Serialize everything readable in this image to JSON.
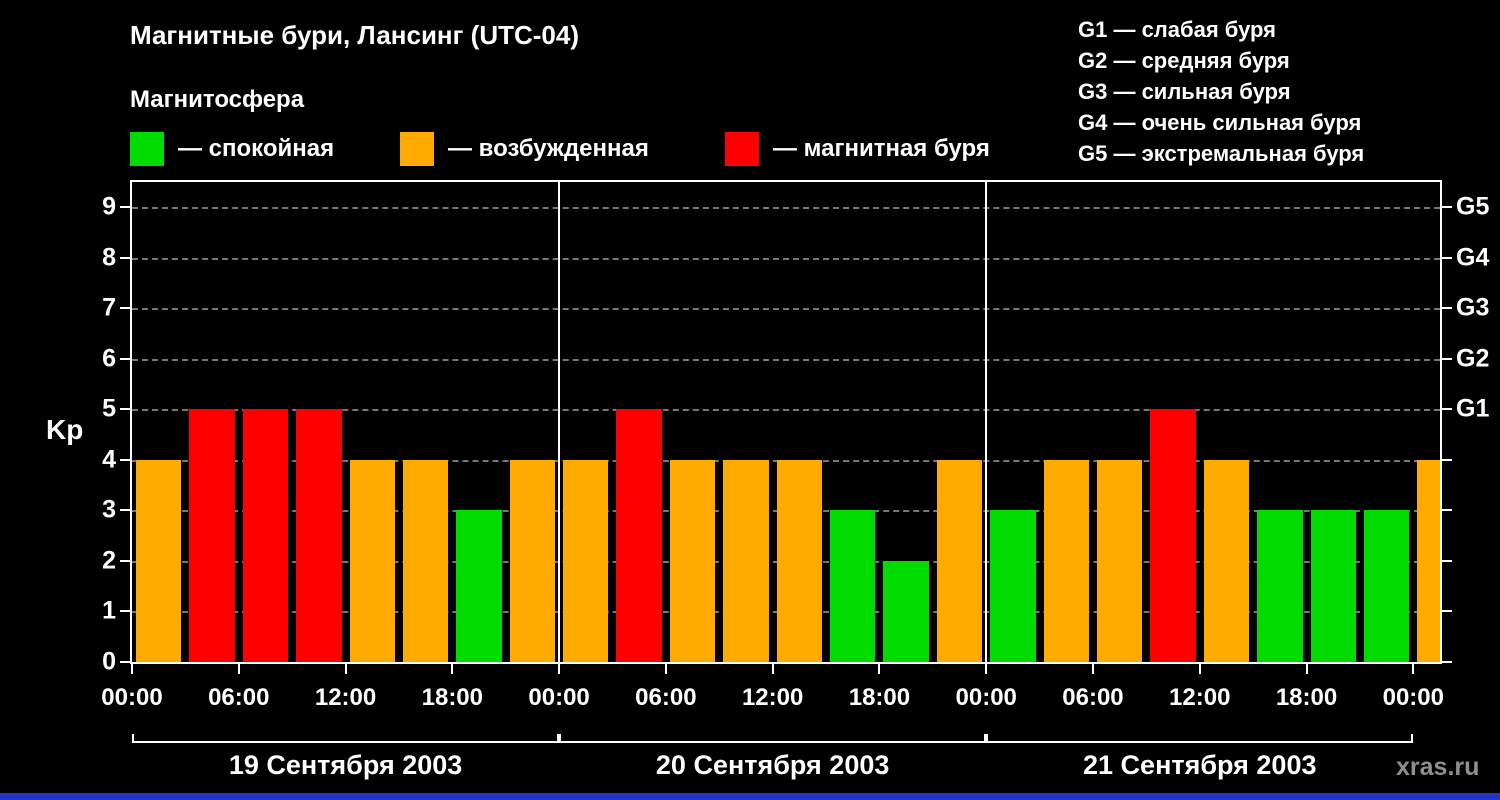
{
  "title": "Магнитные бури, Лансинг (UTC-04)",
  "subtitle": "Магнитосфера",
  "legend": [
    {
      "label": "— спокойная",
      "color": "#00dc00",
      "meaning": "quiet"
    },
    {
      "label": "— возбужденная",
      "color": "#ffaa00",
      "meaning": "active"
    },
    {
      "label": "— магнитная буря",
      "color": "#ff0000",
      "meaning": "storm"
    }
  ],
  "storm_scale": [
    "G1 — слабая буря",
    "G2 — средняя буря",
    "G3 — сильная буря",
    "G4 — очень сильная буря",
    "G5 — экстремальная буря"
  ],
  "watermark": "xras.ru",
  "chart_data": {
    "type": "bar",
    "title": "Магнитные бури, Лансинг (UTC-04)",
    "ylabel": "Kp",
    "xlabel": "",
    "ylim": [
      0,
      9.5
    ],
    "yticks": [
      0,
      1,
      2,
      3,
      4,
      5,
      6,
      7,
      8,
      9
    ],
    "right_axis": [
      {
        "kp": 5,
        "label": "G1"
      },
      {
        "kp": 6,
        "label": "G2"
      },
      {
        "kp": 7,
        "label": "G3"
      },
      {
        "kp": 8,
        "label": "G4"
      },
      {
        "kp": 9,
        "label": "G5"
      }
    ],
    "x_tick_labels": [
      "00:00",
      "06:00",
      "12:00",
      "18:00",
      "00:00",
      "06:00",
      "12:00",
      "18:00",
      "00:00",
      "06:00",
      "12:00",
      "18:00",
      "00:00"
    ],
    "hours_per_bar": 3,
    "days": [
      {
        "date": "19 Сентября 2003",
        "values": [
          4,
          5,
          5,
          5,
          4,
          4,
          3,
          4
        ]
      },
      {
        "date": "20 Сентября 2003",
        "values": [
          4,
          5,
          4,
          4,
          4,
          3,
          2,
          4
        ]
      },
      {
        "date": "21 Сентября 2003",
        "values": [
          3,
          4,
          4,
          5,
          4,
          3,
          3,
          3
        ]
      }
    ],
    "next_day_partial_value": 4,
    "color_rules": {
      "quiet_max_kp": 3,
      "storm_min_kp": 5
    },
    "colors": {
      "quiet": "#00dc00",
      "active": "#ffaa00",
      "storm": "#ff0000"
    },
    "grid": "dashed",
    "legend_position": "top"
  }
}
